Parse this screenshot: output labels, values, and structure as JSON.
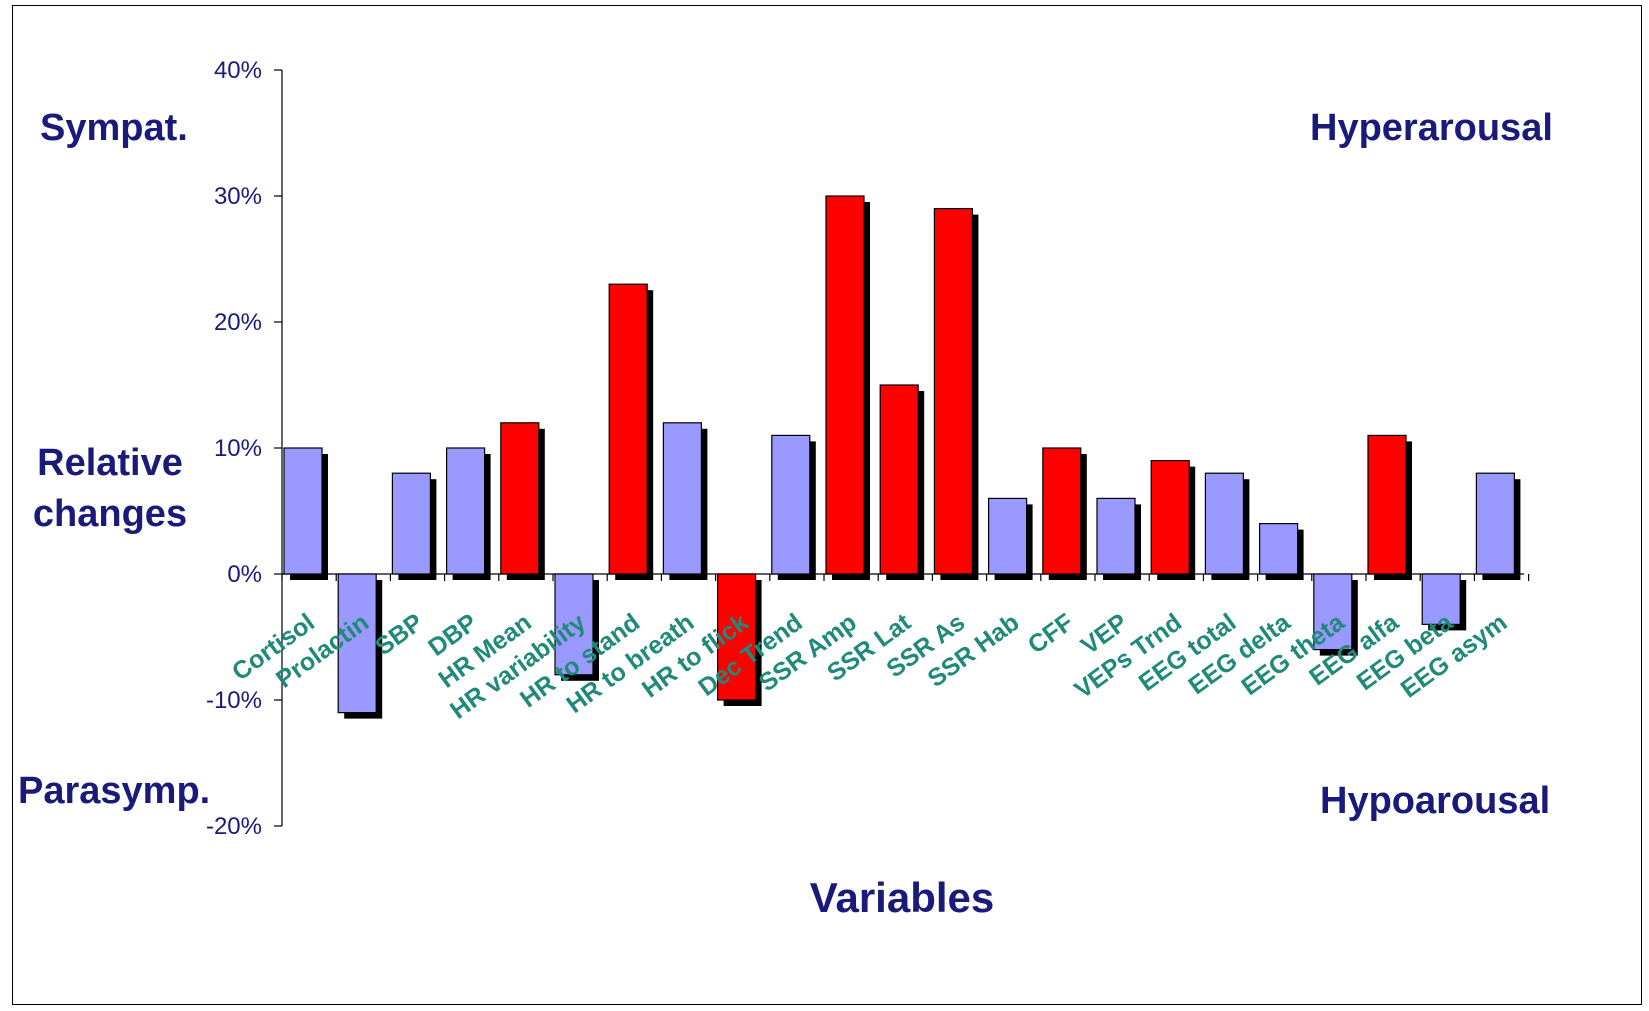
{
  "chart_data": {
    "type": "bar",
    "categories": [
      "Cortisol",
      "Prolactin",
      "SBP",
      "DBP",
      "HR Mean",
      "HR variability",
      "HR to stand",
      "HR to breath",
      "HR to flick",
      "Dec Trend",
      "SSR Amp",
      "SSR Lat",
      "SSR As",
      "SSR Hab",
      "CFF",
      "VEP",
      "VEPs Trnd",
      "EEG total",
      "EEG delta",
      "EEG theta",
      "EEG alfa",
      "EEG beta",
      "EEG asym"
    ],
    "values": [
      10,
      -11,
      8,
      10,
      12,
      -8,
      23,
      12,
      -10,
      11,
      30,
      15,
      29,
      6,
      10,
      6,
      9,
      8,
      4,
      -6,
      11,
      -4,
      8
    ],
    "highlight": [
      false,
      false,
      false,
      false,
      true,
      false,
      true,
      false,
      true,
      false,
      true,
      true,
      true,
      false,
      true,
      false,
      true,
      false,
      false,
      false,
      true,
      false,
      false
    ],
    "ylim": [
      -20,
      40
    ],
    "yticks": [
      "40%",
      "30%",
      "20%",
      "10%",
      "0%",
      "-10%",
      "-20%"
    ],
    "ytick_values": [
      40,
      30,
      20,
      10,
      0,
      -10,
      -20
    ],
    "xlabel": "Variables",
    "ylabel": "Relative changes",
    "annotations": {
      "top_left": "Sympat.",
      "bottom_left": "Parasymp.",
      "top_right": "Hyperarousal",
      "bottom_right": "Hypoarousal"
    },
    "colors": {
      "bar_default": "#9999ff",
      "bar_highlight": "#ff0000",
      "shadow": "#000000",
      "category_label": "#1f8a7a",
      "annotation": "#1a1a7a",
      "tick_label": "#1a1a7a"
    },
    "grid": false,
    "legend": "none"
  }
}
